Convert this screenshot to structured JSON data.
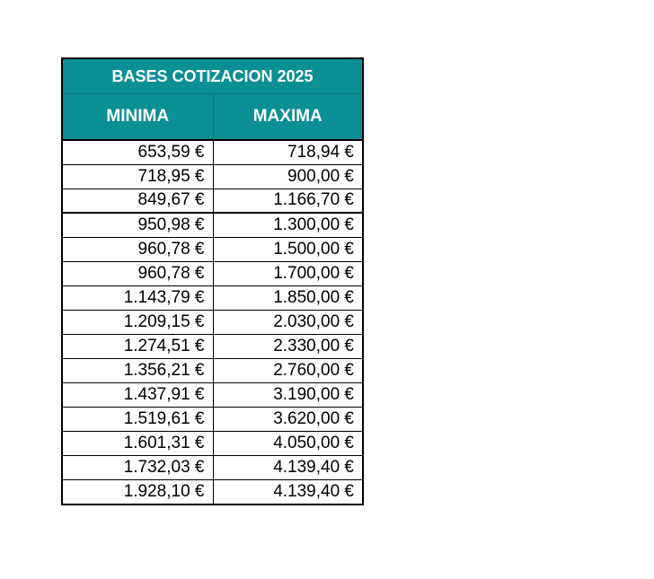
{
  "table": {
    "title": "BASES COTIZACION 2025",
    "headers": [
      "MINIMA",
      "MAXIMA"
    ],
    "rows": [
      [
        "653,59 €",
        "718,94 €"
      ],
      [
        "718,95 €",
        "900,00 €"
      ],
      [
        "849,67 €",
        "1.166,70 €"
      ],
      [
        "950,98 €",
        "1.300,00 €"
      ],
      [
        "960,78 €",
        "1.500,00 €"
      ],
      [
        "960,78 €",
        "1.700,00 €"
      ],
      [
        "1.143,79 €",
        "1.850,00 €"
      ],
      [
        "1.209,15 €",
        "2.030,00 €"
      ],
      [
        "1.274,51 €",
        "2.330,00 €"
      ],
      [
        "1.356,21 €",
        "2.760,00 €"
      ],
      [
        "1.437,91 €",
        "3.190,00 €"
      ],
      [
        "1.519,61 €",
        "3.620,00 €"
      ],
      [
        "1.601,31 €",
        "4.050,00 €"
      ],
      [
        "1.732,03 €",
        "4.139,40 €"
      ],
      [
        "1.928,10 €",
        "4.139,40 €"
      ]
    ]
  },
  "colors": {
    "header_bg": "#0a8f94",
    "header_text": "#ffffff"
  }
}
